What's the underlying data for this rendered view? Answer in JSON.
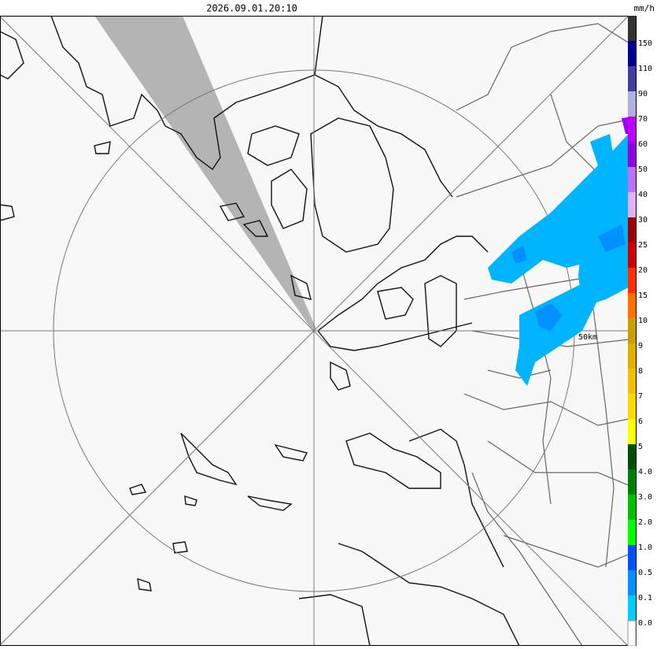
{
  "header": {
    "timestamp": "2026.09.01.20:10",
    "unit": "mm/h"
  },
  "legend": {
    "labels": [
      "150",
      "110",
      "90",
      "70",
      "60",
      "50",
      "40",
      "30",
      "25",
      "20",
      "15",
      "10",
      "9",
      "8",
      "7",
      "6",
      "5",
      "4.0",
      "3.0",
      "2.0",
      "1.0",
      "0.5",
      "0.1",
      "0.0"
    ],
    "colors": [
      "#333333",
      "#000090",
      "#4040a0",
      "#b0b0e0",
      "#c000ff",
      "#9000e0",
      "#c070ff",
      "#e0b0ff",
      "#a00000",
      "#d00000",
      "#ff3000",
      "#ff7000",
      "#c8a000",
      "#e0b000",
      "#f0c000",
      "#ffd800",
      "#ffff00",
      "#005000",
      "#008000",
      "#00c000",
      "#00ff00",
      "#0050ff",
      "#0090ff",
      "#00ccff",
      "#ffffff"
    ]
  },
  "map": {
    "range_label": "50km"
  }
}
